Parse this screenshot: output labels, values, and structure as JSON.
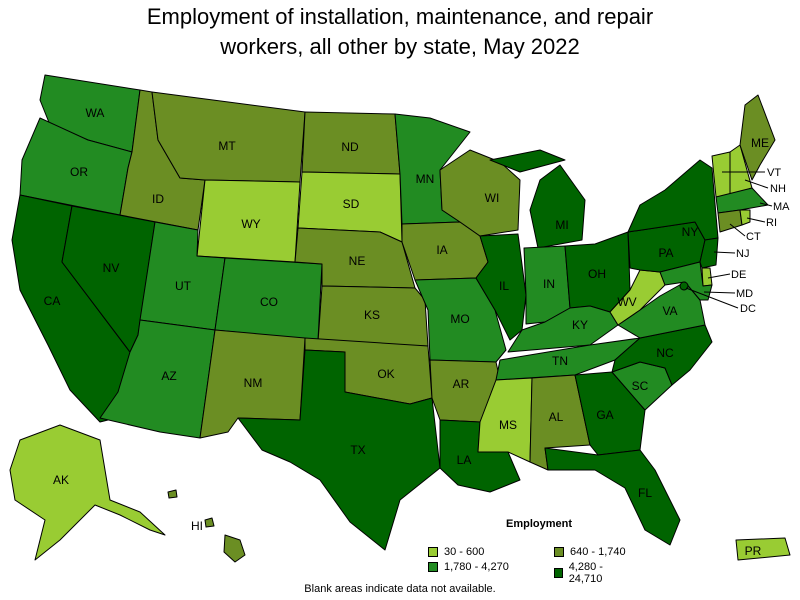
{
  "title_line1": "Employment of installation, maintenance, and repair",
  "title_line2": "workers, all other by state, May 2022",
  "legend": {
    "title": "Employment",
    "bins": [
      {
        "label": "30 - 600",
        "color": "#99cc33"
      },
      {
        "label": "640 - 1,740",
        "color": "#6b8e23"
      },
      {
        "label": "1,780 - 4,270",
        "color": "#228b22"
      },
      {
        "label": "4,280 - 24,710",
        "color": "#006400"
      }
    ]
  },
  "footnote": "Blank areas indicate data not available.",
  "states": {
    "WA": {
      "label": "WA",
      "bin": 2
    },
    "OR": {
      "label": "OR",
      "bin": 2
    },
    "CA": {
      "label": "CA",
      "bin": 3
    },
    "NV": {
      "label": "NV",
      "bin": 3
    },
    "ID": {
      "label": "ID",
      "bin": 1
    },
    "MT": {
      "label": "MT",
      "bin": 1
    },
    "WY": {
      "label": "WY",
      "bin": 0
    },
    "UT": {
      "label": "UT",
      "bin": 2
    },
    "AZ": {
      "label": "AZ",
      "bin": 2
    },
    "CO": {
      "label": "CO",
      "bin": 2
    },
    "NM": {
      "label": "NM",
      "bin": 1
    },
    "ND": {
      "label": "ND",
      "bin": 1
    },
    "SD": {
      "label": "SD",
      "bin": 0
    },
    "NE": {
      "label": "NE",
      "bin": 1
    },
    "KS": {
      "label": "KS",
      "bin": 1
    },
    "OK": {
      "label": "OK",
      "bin": 1
    },
    "TX": {
      "label": "TX",
      "bin": 3
    },
    "MN": {
      "label": "MN",
      "bin": 2
    },
    "IA": {
      "label": "IA",
      "bin": 1
    },
    "MO": {
      "label": "MO",
      "bin": 2
    },
    "AR": {
      "label": "AR",
      "bin": 1
    },
    "LA": {
      "label": "LA",
      "bin": 3
    },
    "WI": {
      "label": "WI",
      "bin": 1
    },
    "IL": {
      "label": "IL",
      "bin": 3
    },
    "MI": {
      "label": "MI",
      "bin": 3
    },
    "IN": {
      "label": "IN",
      "bin": 2
    },
    "OH": {
      "label": "OH",
      "bin": 3
    },
    "KY": {
      "label": "KY",
      "bin": 2
    },
    "TN": {
      "label": "TN",
      "bin": 2
    },
    "MS": {
      "label": "MS",
      "bin": 0
    },
    "AL": {
      "label": "AL",
      "bin": 1
    },
    "GA": {
      "label": "GA",
      "bin": 3
    },
    "FL": {
      "label": "FL",
      "bin": 3
    },
    "SC": {
      "label": "SC",
      "bin": 2
    },
    "NC": {
      "label": "NC",
      "bin": 3
    },
    "VA": {
      "label": "VA",
      "bin": 2
    },
    "WV": {
      "label": "WV",
      "bin": 0
    },
    "PA": {
      "label": "PA",
      "bin": 3
    },
    "NY": {
      "label": "NY",
      "bin": 3
    },
    "ME": {
      "label": "ME",
      "bin": 1
    },
    "VT": {
      "label": "VT",
      "bin": 0
    },
    "NH": {
      "label": "NH",
      "bin": 0
    },
    "MA": {
      "label": "MA",
      "bin": 2
    },
    "RI": {
      "label": "RI",
      "bin": 0
    },
    "CT": {
      "label": "CT",
      "bin": 1
    },
    "NJ": {
      "label": "NJ",
      "bin": 3
    },
    "DE": {
      "label": "DE",
      "bin": 0
    },
    "MD": {
      "label": "MD",
      "bin": 2
    },
    "DC": {
      "label": "DC",
      "bin": 3
    },
    "AK": {
      "label": "AK",
      "bin": 0
    },
    "HI": {
      "label": "HI",
      "bin": 1
    },
    "PR": {
      "label": "PR",
      "bin": 0
    }
  }
}
